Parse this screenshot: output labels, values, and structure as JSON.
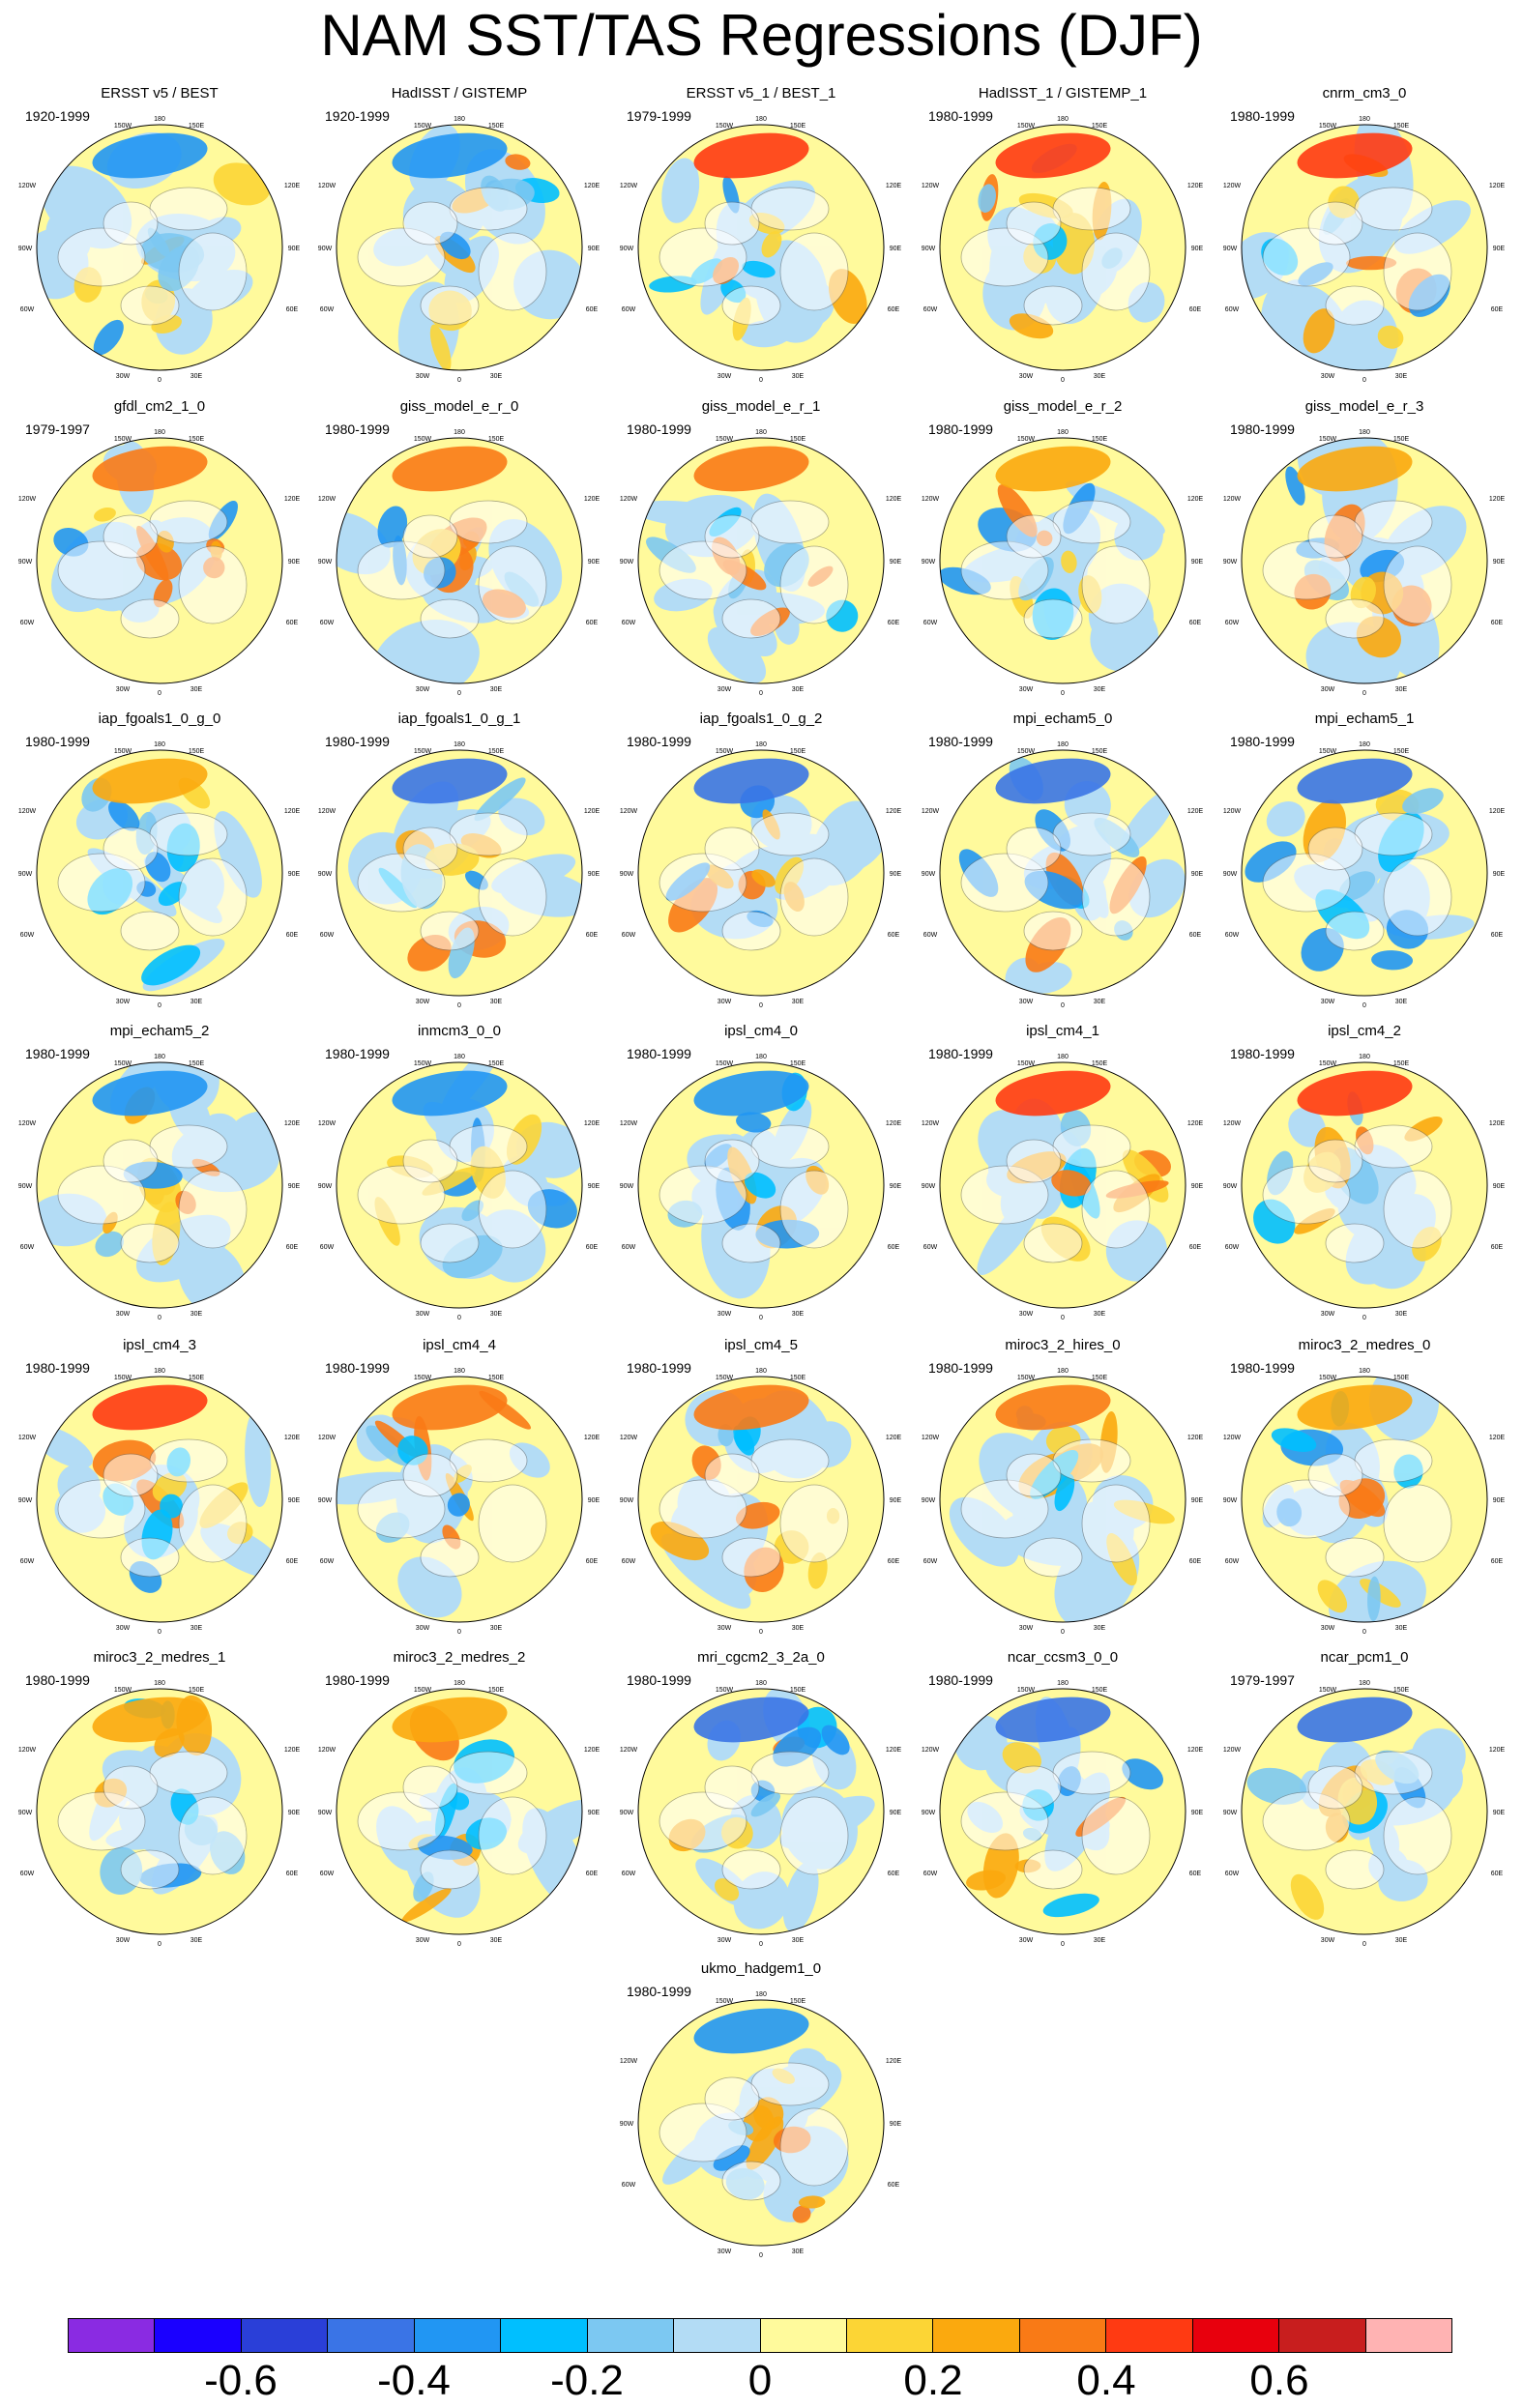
{
  "title": "NAM SST/TAS Regressions (DJF)",
  "longitude_labels": [
    "180",
    "150W",
    "150E",
    "120W",
    "120E",
    "90W",
    "90E",
    "60W",
    "60E",
    "30W",
    "30E",
    "0"
  ],
  "panels": [
    {
      "name": "ERSST v5 / BEST",
      "period": "1920-1999"
    },
    {
      "name": "HadISST / GISTEMP",
      "period": "1920-1999"
    },
    {
      "name": "ERSST v5_1 / BEST_1",
      "period": "1979-1999"
    },
    {
      "name": "HadISST_1 / GISTEMP_1",
      "period": "1980-1999"
    },
    {
      "name": "cnrm_cm3_0",
      "period": "1980-1999"
    },
    {
      "name": "gfdl_cm2_1_0",
      "period": "1979-1997"
    },
    {
      "name": "giss_model_e_r_0",
      "period": "1980-1999"
    },
    {
      "name": "giss_model_e_r_1",
      "period": "1980-1999"
    },
    {
      "name": "giss_model_e_r_2",
      "period": "1980-1999"
    },
    {
      "name": "giss_model_e_r_3",
      "period": "1980-1999"
    },
    {
      "name": "iap_fgoals1_0_g_0",
      "period": "1980-1999"
    },
    {
      "name": "iap_fgoals1_0_g_1",
      "period": "1980-1999"
    },
    {
      "name": "iap_fgoals1_0_g_2",
      "period": "1980-1999"
    },
    {
      "name": "mpi_echam5_0",
      "period": "1980-1999"
    },
    {
      "name": "mpi_echam5_1",
      "period": "1980-1999"
    },
    {
      "name": "mpi_echam5_2",
      "period": "1980-1999"
    },
    {
      "name": "inmcm3_0_0",
      "period": "1980-1999"
    },
    {
      "name": "ipsl_cm4_0",
      "period": "1980-1999"
    },
    {
      "name": "ipsl_cm4_1",
      "period": "1980-1999"
    },
    {
      "name": "ipsl_cm4_2",
      "period": "1980-1999"
    },
    {
      "name": "ipsl_cm4_3",
      "period": "1980-1999"
    },
    {
      "name": "ipsl_cm4_4",
      "period": "1980-1999"
    },
    {
      "name": "ipsl_cm4_5",
      "period": "1980-1999"
    },
    {
      "name": "miroc3_2_hires_0",
      "period": "1980-1999"
    },
    {
      "name": "miroc3_2_medres_0",
      "period": "1980-1999"
    },
    {
      "name": "miroc3_2_medres_1",
      "period": "1980-1999"
    },
    {
      "name": "miroc3_2_medres_2",
      "period": "1980-1999"
    },
    {
      "name": "mri_cgcm2_3_2a_0",
      "period": "1980-1999"
    },
    {
      "name": "ncar_ccsm3_0_0",
      "period": "1980-1999"
    },
    {
      "name": "ncar_pcm1_0",
      "period": "1979-1997"
    },
    {
      "name": "ukmo_hadgem1_0",
      "period": "1980-1999"
    }
  ],
  "colorbar": {
    "colors": [
      "#8a2be2",
      "#1a00ff",
      "#2a3fd8",
      "#3a74e6",
      "#2196f3",
      "#00bfff",
      "#7cc8f2",
      "#b3dcf5",
      "#fffa9c",
      "#fcd535",
      "#fba90e",
      "#f97a16",
      "#ff3a12",
      "#e8000d",
      "#c81e1e",
      "#ffb3b3"
    ],
    "tick_labels": [
      "-0.6",
      "-0.4",
      "-0.2",
      "0",
      "0.2",
      "0.4",
      "0.6"
    ],
    "tick_values": [
      -0.6,
      -0.4,
      -0.2,
      0,
      0.2,
      0.4,
      0.6
    ],
    "range": [
      -0.8,
      0.8
    ]
  }
}
